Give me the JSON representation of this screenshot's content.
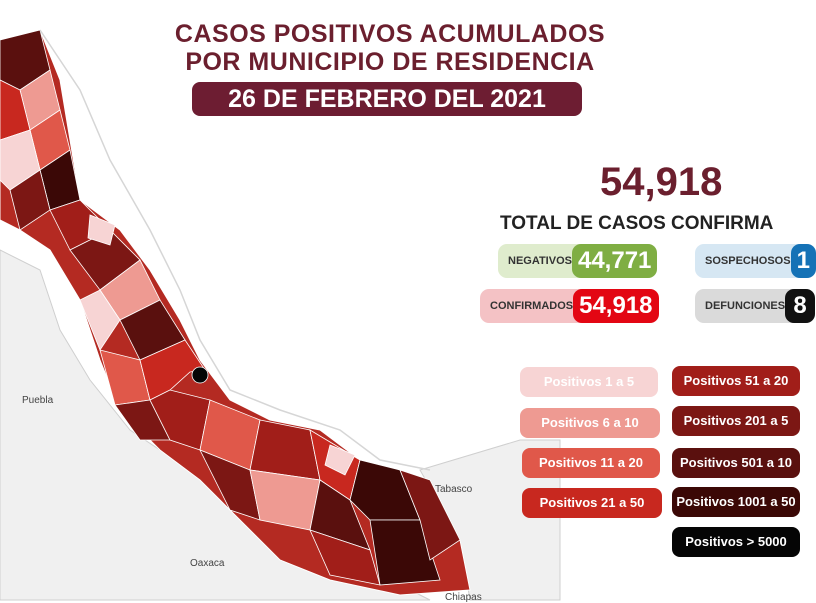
{
  "title": {
    "line1": "CASOS POSITIVOS ACUMULADOS",
    "line2": "POR MUNICIPIO DE RESIDENCIA",
    "date": "26 DE FEBRERO DEL 2021"
  },
  "summary": {
    "total_value": "54,918",
    "total_label": "TOTAL DE CASOS CONFIRMA",
    "negativos": {
      "label": "NEGATIVOS",
      "value": "44,771",
      "color": "#7fae43"
    },
    "confirmados": {
      "label": "CONFIRMADOS",
      "value": "54,918",
      "color": "#e30613"
    },
    "sospechosos": {
      "label": "SOSPECHOSOS",
      "value": "1",
      "color": "#1572b6"
    },
    "defunciones": {
      "label": "DEFUNCIONES",
      "value": "8",
      "color": "#111111"
    }
  },
  "legend": {
    "left": [
      {
        "label": "Positivos 1 a 5",
        "color": "#f7d4d4"
      },
      {
        "label": "Positivos 6 a 10",
        "color": "#ee9a92"
      },
      {
        "label": "Positivos 11 a 20",
        "color": "#e0584a"
      },
      {
        "label": "Positivos 21 a 50",
        "color": "#c8281f"
      }
    ],
    "right": [
      {
        "label": "Positivos 51 a 20",
        "color": "#a11e19"
      },
      {
        "label": "Positivos 201 a 5",
        "color": "#7c1714"
      },
      {
        "label": "Positivos 501 a 10",
        "color": "#5a100e"
      },
      {
        "label": "Positivos 1001 a 50",
        "color": "#3b0806"
      },
      {
        "label": "Positivos > 5000",
        "color": "#050505"
      }
    ]
  },
  "map_labels": {
    "puebla": "Puebla",
    "oaxaca": "Oaxaca",
    "tabasco": "Tabasco",
    "chiapas": "Chiapas"
  }
}
